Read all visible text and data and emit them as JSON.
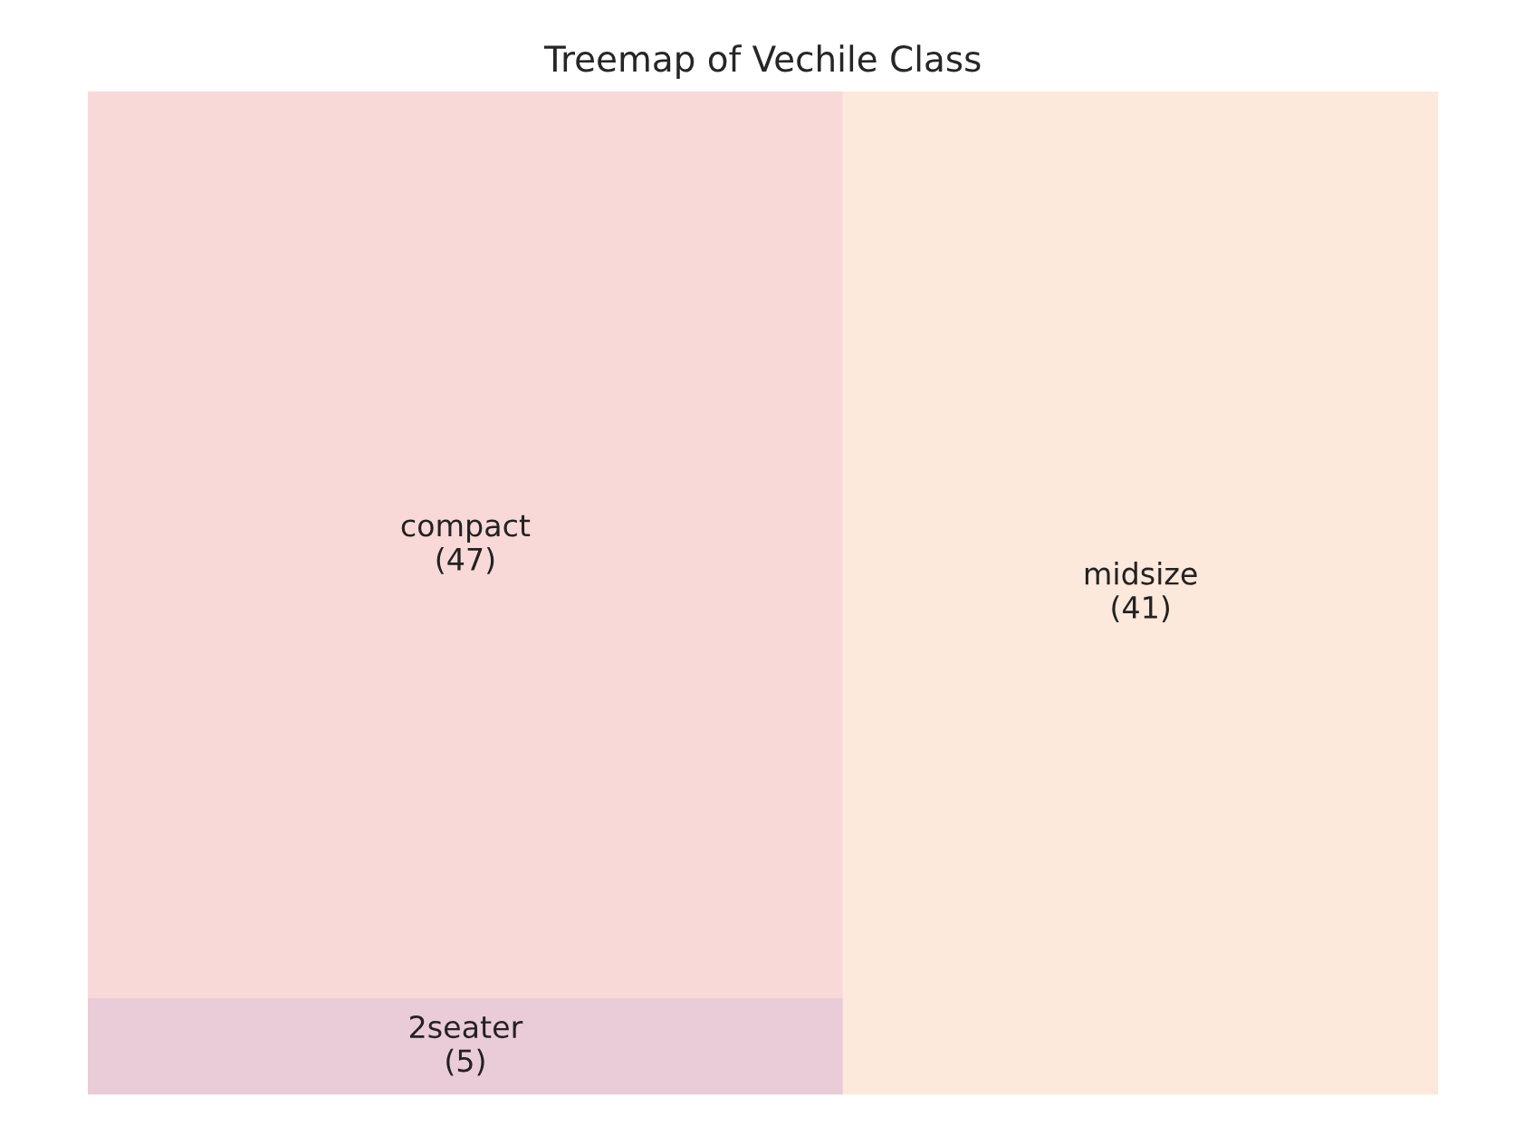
{
  "chart_data": {
    "type": "other",
    "title": "Treemap of Vechile Class",
    "categories": [
      "compact",
      "2seater",
      "midsize"
    ],
    "values": [
      47,
      5,
      41
    ],
    "value_labels": [
      "(47)",
      "(5)",
      "(41)"
    ],
    "colors": [
      "#f8d9d8",
      "#eacbd8",
      "#fde8dc"
    ]
  }
}
